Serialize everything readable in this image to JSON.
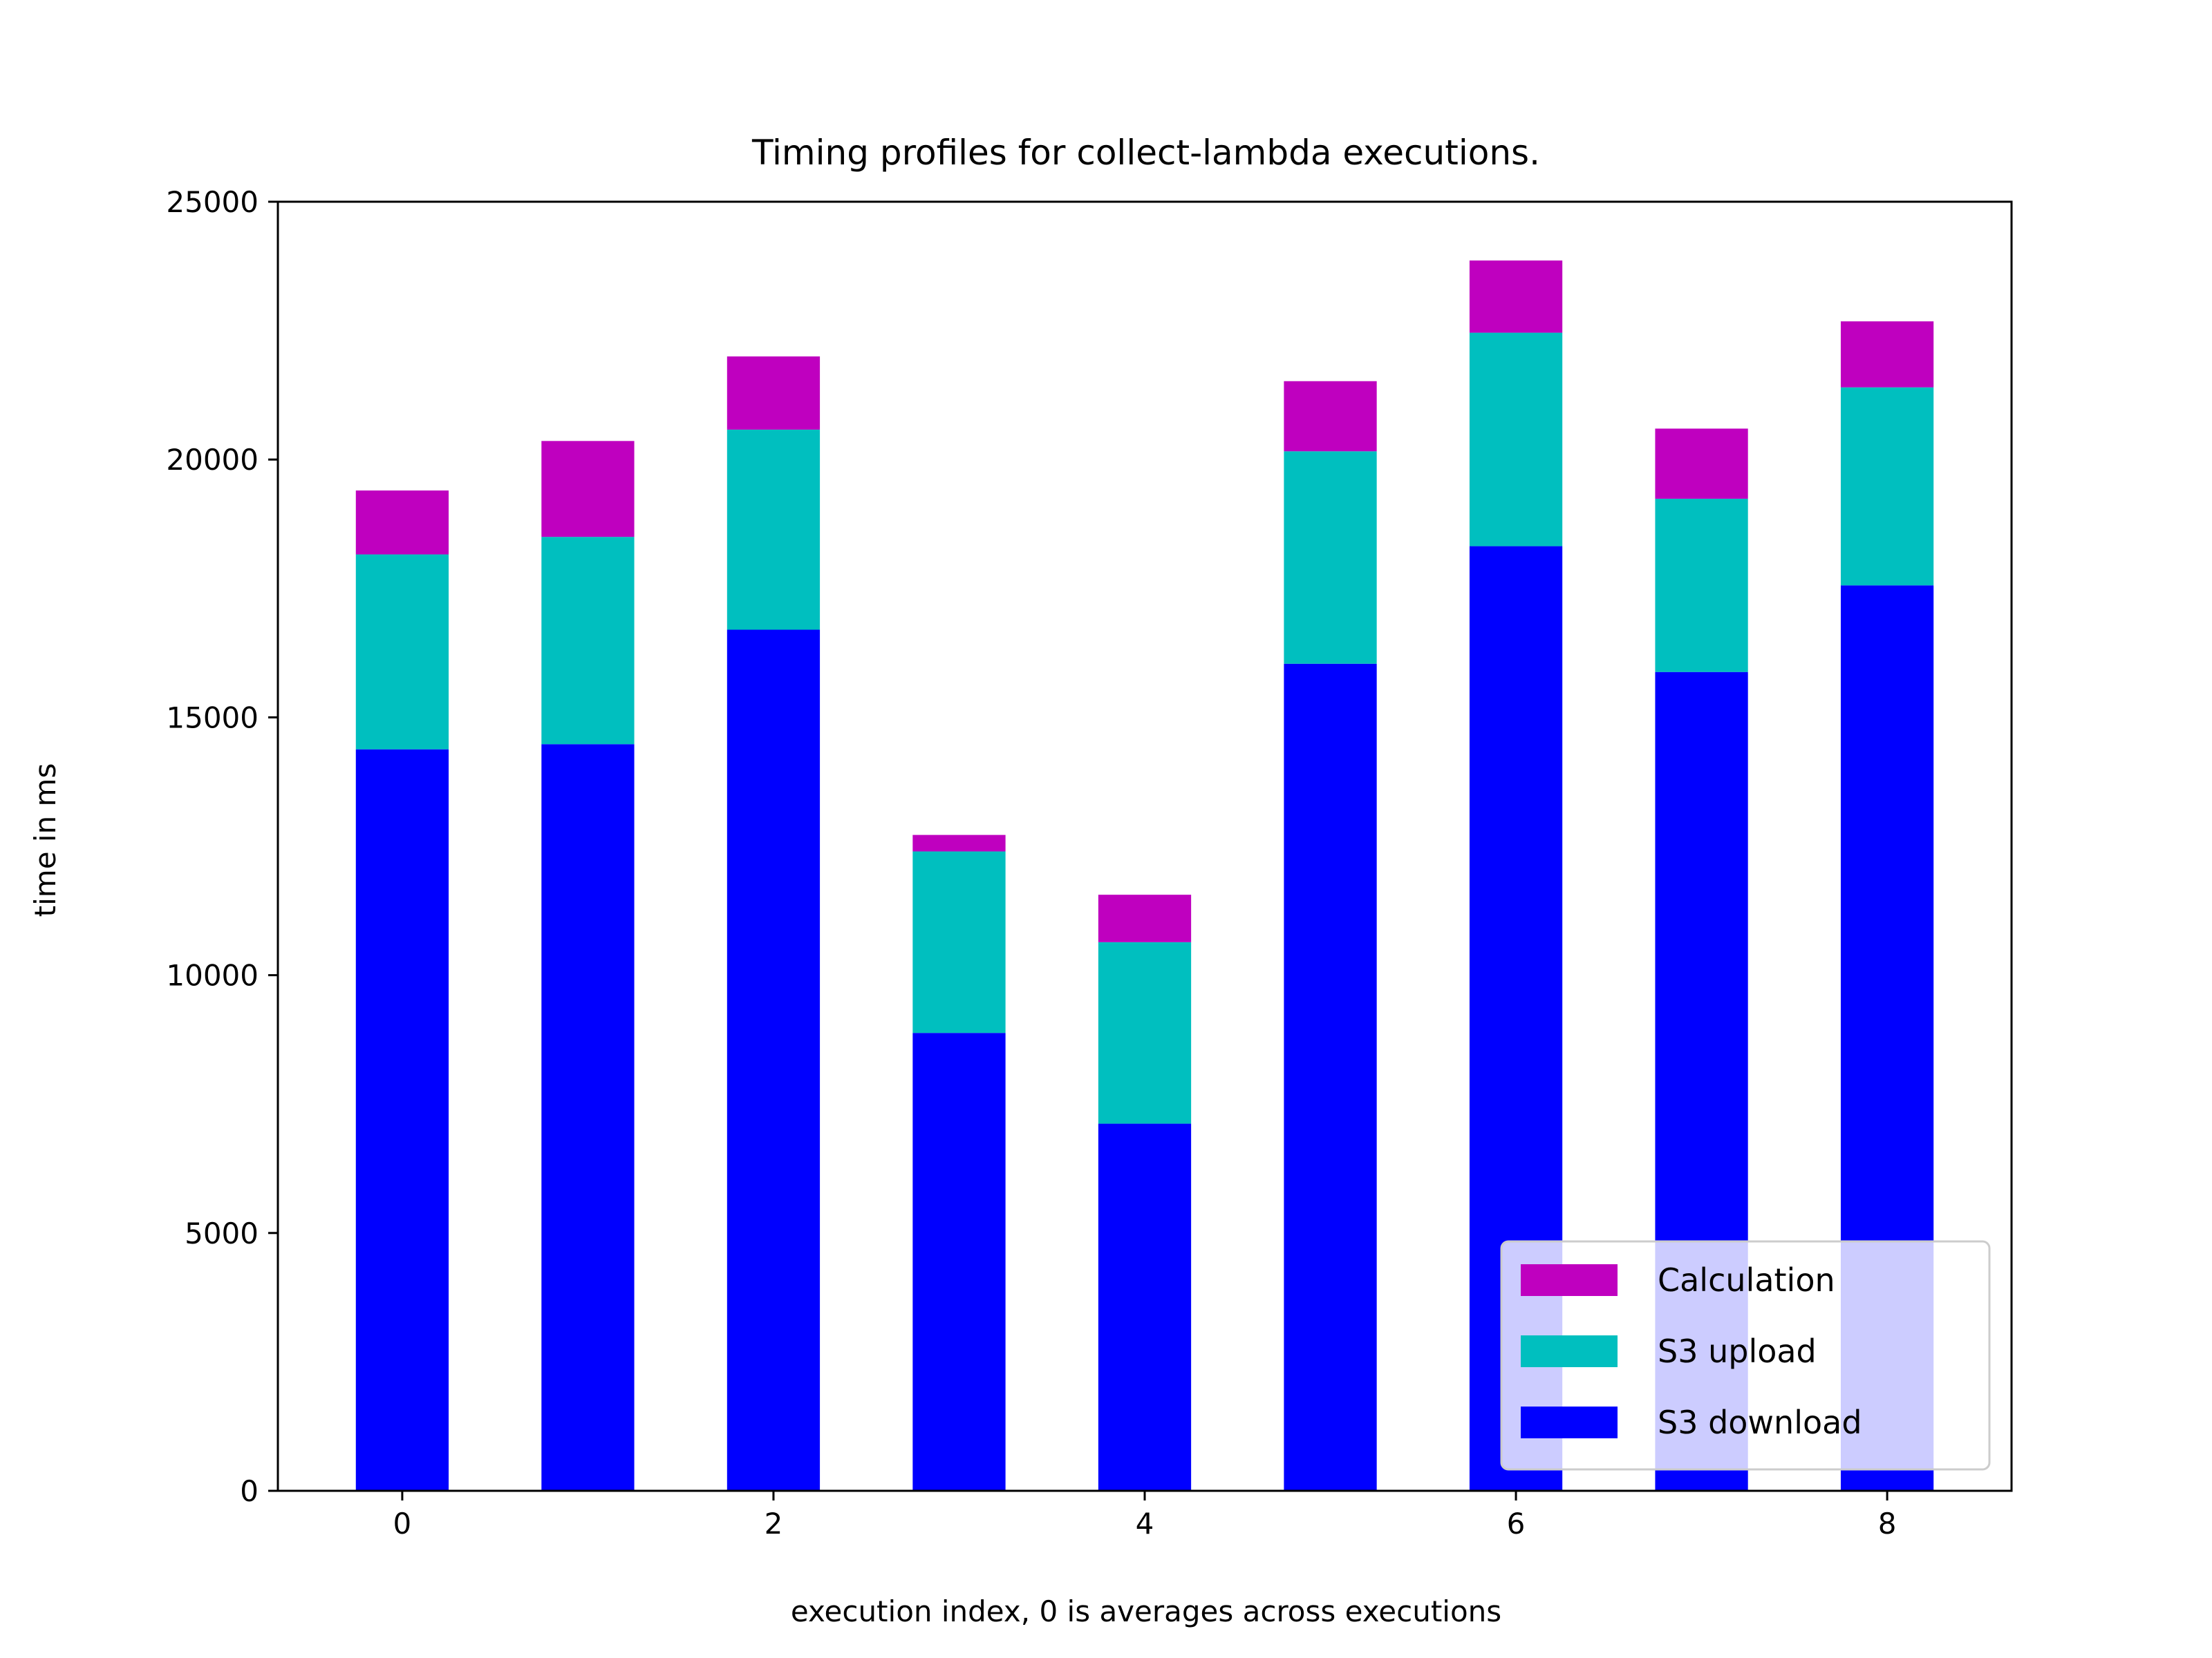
{
  "chart_data": {
    "type": "bar",
    "stacked": true,
    "title": "Timing profiles for collect-lambda executions.",
    "xlabel": "execution index, 0 is averages across executions",
    "ylabel": "time in ms",
    "categories": [
      0,
      1,
      2,
      3,
      4,
      5,
      6,
      7,
      8
    ],
    "xticks": [
      0,
      2,
      4,
      6,
      8
    ],
    "xlim": [
      -0.67,
      8.67
    ],
    "ylim": [
      0,
      25000
    ],
    "yticks": [
      0,
      5000,
      10000,
      15000,
      20000,
      25000
    ],
    "grid": false,
    "legend_position": "lower-right",
    "legend_order": [
      "Calculation",
      "S3 upload",
      "S3 download"
    ],
    "series": [
      {
        "name": "S3 download",
        "color": "#0000ff",
        "values": [
          14380,
          14480,
          16700,
          8880,
          7120,
          16040,
          18320,
          15880,
          17560
        ]
      },
      {
        "name": "S3 upload",
        "color": "#00bfbf",
        "values": [
          3780,
          4020,
          3880,
          3520,
          3520,
          4120,
          4140,
          3360,
          3840
        ]
      },
      {
        "name": "Calculation",
        "color": "#bf00bf",
        "values": [
          1240,
          1860,
          1420,
          320,
          920,
          1360,
          1400,
          1360,
          1280
        ]
      }
    ]
  }
}
